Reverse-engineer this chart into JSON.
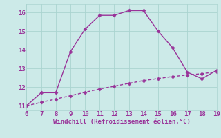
{
  "x": [
    6,
    7,
    8,
    9,
    10,
    11,
    12,
    13,
    14,
    15,
    16,
    17,
    18,
    19
  ],
  "y_curve": [
    11.0,
    11.7,
    11.7,
    13.9,
    15.1,
    15.85,
    15.85,
    16.1,
    16.1,
    15.0,
    14.1,
    12.8,
    12.45,
    12.9
  ],
  "y_line": [
    11.0,
    11.18,
    11.36,
    11.54,
    11.72,
    11.9,
    12.05,
    12.2,
    12.35,
    12.46,
    12.57,
    12.65,
    12.72,
    12.82
  ],
  "xlim": [
    6,
    19
  ],
  "ylim": [
    10.75,
    16.45
  ],
  "xticks": [
    6,
    7,
    8,
    9,
    10,
    11,
    12,
    13,
    14,
    15,
    16,
    17,
    18,
    19
  ],
  "yticks": [
    11,
    12,
    13,
    14,
    15,
    16
  ],
  "xlabel": "Windchill (Refroidissement éolien,°C)",
  "line_color": "#993399",
  "bg_color": "#cceae8",
  "grid_color": "#aad4d0",
  "marker": "D",
  "marker_size": 2.5,
  "line_width": 1.0
}
